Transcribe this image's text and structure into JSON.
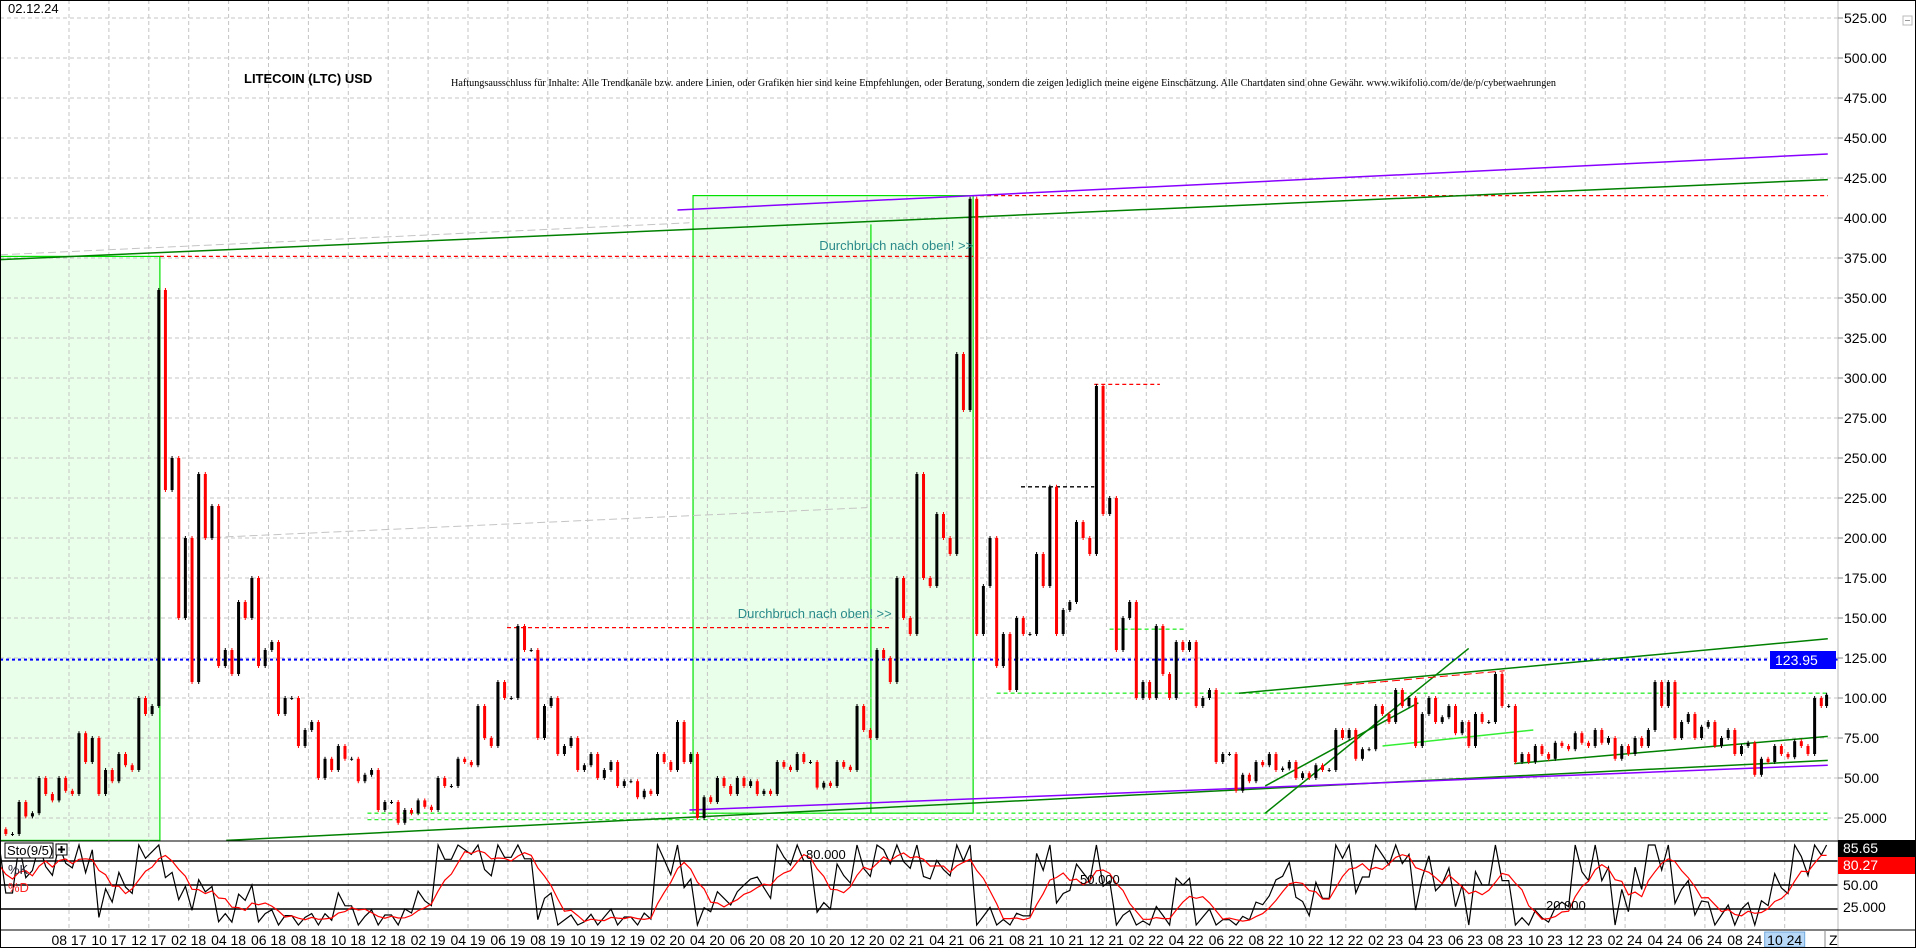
{
  "header": {
    "date": "02.12.24",
    "title": "LITECOIN (LTC) USD",
    "disclaimer": "Haftungsausschluss für Inhalte: Alle Trendkanäle bzw. andere Linien, oder Grafiken hier sind keine Empfehlungen, oder Beratung, sondern die zeigen lediglich meine eigene Einschätzung. Alle Chartdaten sind ohne Gewähr.  www.wikifolio.com/de/de/p/cyberwaehrungen"
  },
  "colors": {
    "up_candle": "#000000",
    "down_candle": "#ff0000",
    "zone_fill": "#eaffea",
    "zone_border": "#00e000",
    "trend_green": "#008000",
    "trend_lime": "#33ee33",
    "trend_purple": "#8800ff",
    "level_red": "#ff0000",
    "level_blue": "#0000ff",
    "grid": "#c4c4c4",
    "stoch_k": "#000000",
    "stoch_d": "#ff0000",
    "annotation_text": "#2a8a8a"
  },
  "chart_data": {
    "type": "candlestick",
    "title": "LITECOIN (LTC) USD",
    "y_axis": {
      "position": "right",
      "ylim": [
        11,
        535
      ],
      "ticks": [
        "525.00",
        "500.00",
        "475.00",
        "450.00",
        "425.00",
        "400.00",
        "375.00",
        "350.00",
        "325.00",
        "300.00",
        "275.00",
        "250.00",
        "225.00",
        "200.00",
        "175.00",
        "150.00",
        "125.00",
        "100.00",
        "75.00",
        "50.00",
        "25.000"
      ],
      "tick_values": [
        525,
        500,
        475,
        450,
        425,
        400,
        375,
        350,
        325,
        300,
        275,
        250,
        225,
        200,
        175,
        150,
        125,
        100,
        75,
        50,
        25
      ]
    },
    "grid": true,
    "last_price_label": "123.95",
    "last_price_level": 123.95,
    "x_axis": {
      "ticks": [
        "08 17",
        "10 17",
        "12 17",
        "02 18",
        "04 18",
        "06 18",
        "08 18",
        "10 18",
        "12 18",
        "02 19",
        "04 19",
        "06 19",
        "08 19",
        "10 19",
        "12 19",
        "02 20",
        "04 20",
        "06 20",
        "08 20",
        "10 20",
        "12 20",
        "02 21",
        "04 21",
        "06 21",
        "08 21",
        "10 21",
        "12 21",
        "02 22",
        "04 22",
        "06 22",
        "08 22",
        "10 22",
        "12 22",
        "02 23",
        "04 23",
        "06 23",
        "08 23",
        "10 23",
        "12 23",
        "02 24",
        "04 24",
        "06 24",
        "08 24",
        "10 24"
      ],
      "end_button": "Z"
    },
    "monthly": {
      "x": [
        "2017-04",
        "2017-05",
        "2017-06",
        "2017-07",
        "2017-08",
        "2017-09",
        "2017-10",
        "2017-11",
        "2017-12",
        "2018-01",
        "2018-02",
        "2018-03",
        "2018-04",
        "2018-05",
        "2018-06",
        "2018-07",
        "2018-08",
        "2018-09",
        "2018-10",
        "2018-11",
        "2018-12",
        "2019-01",
        "2019-02",
        "2019-03",
        "2019-04",
        "2019-05",
        "2019-06",
        "2019-07",
        "2019-08",
        "2019-09",
        "2019-10",
        "2019-11",
        "2019-12",
        "2020-01",
        "2020-02",
        "2020-03",
        "2020-04",
        "2020-05",
        "2020-06",
        "2020-07",
        "2020-08",
        "2020-09",
        "2020-10",
        "2020-11",
        "2020-12",
        "2021-01",
        "2021-02",
        "2021-03",
        "2021-04",
        "2021-05",
        "2021-06",
        "2021-07",
        "2021-08",
        "2021-09",
        "2021-10",
        "2021-11",
        "2021-12",
        "2022-01",
        "2022-02",
        "2022-03",
        "2022-04",
        "2022-05",
        "2022-06",
        "2022-07",
        "2022-08",
        "2022-09",
        "2022-10",
        "2022-11",
        "2022-12",
        "2023-01",
        "2023-02",
        "2023-03",
        "2023-04",
        "2023-05",
        "2023-06",
        "2023-07",
        "2023-08",
        "2023-09",
        "2023-10",
        "2023-11",
        "2023-12",
        "2024-01",
        "2024-02",
        "2024-03",
        "2024-04",
        "2024-05",
        "2024-06",
        "2024-07",
        "2024-08",
        "2024-09",
        "2024-10",
        "2024-11",
        "2024-12"
      ],
      "low": [
        13,
        15,
        28,
        36,
        40,
        40,
        48,
        55,
        95,
        150,
        110,
        120,
        115,
        120,
        90,
        70,
        50,
        55,
        48,
        30,
        22,
        28,
        30,
        45,
        58,
        70,
        100,
        75,
        65,
        55,
        50,
        45,
        38,
        40,
        55,
        25,
        35,
        40,
        40,
        40,
        55,
        44,
        45,
        55,
        75,
        110,
        140,
        170,
        190,
        140,
        120,
        105,
        140,
        140,
        160,
        190,
        130,
        100,
        100,
        100,
        95,
        60,
        42,
        48,
        55,
        50,
        50,
        55,
        62,
        68,
        85,
        70,
        85,
        78,
        70,
        85,
        60,
        60,
        62,
        68,
        70,
        62,
        65,
        80,
        75,
        75,
        70,
        65,
        52,
        60,
        63,
        65,
        95
      ],
      "high": [
        18,
        35,
        50,
        50,
        78,
        75,
        65,
        100,
        355,
        250,
        240,
        220,
        160,
        175,
        135,
        100,
        85,
        70,
        62,
        55,
        35,
        36,
        50,
        62,
        95,
        110,
        145,
        130,
        100,
        75,
        65,
        60,
        48,
        65,
        85,
        65,
        50,
        50,
        48,
        60,
        65,
        60,
        60,
        95,
        130,
        175,
        240,
        215,
        315,
        412,
        200,
        150,
        190,
        232,
        210,
        295,
        225,
        160,
        145,
        135,
        135,
        105,
        65,
        60,
        65,
        60,
        58,
        80,
        80,
        95,
        105,
        100,
        100,
        95,
        90,
        115,
        95,
        70,
        72,
        78,
        80,
        75,
        75,
        110,
        110,
        90,
        85,
        80,
        72,
        70,
        73,
        100,
        105
      ],
      "close": [
        15,
        26,
        40,
        42,
        60,
        55,
        58,
        90,
        230,
        200,
        200,
        130,
        150,
        130,
        100,
        80,
        62,
        62,
        52,
        35,
        30,
        32,
        45,
        60,
        75,
        100,
        130,
        95,
        70,
        58,
        55,
        48,
        42,
        60,
        60,
        38,
        45,
        45,
        42,
        57,
        60,
        47,
        57,
        80,
        125,
        150,
        175,
        200,
        280,
        170,
        140,
        140,
        170,
        155,
        200,
        215,
        150,
        110,
        115,
        130,
        100,
        65,
        52,
        58,
        56,
        53,
        55,
        75,
        68,
        90,
        95,
        90,
        88,
        85,
        85,
        95,
        65,
        65,
        70,
        72,
        72,
        70,
        70,
        95,
        85,
        82,
        75,
        70,
        62,
        65,
        70,
        95,
        102
      ]
    },
    "annotations": {
      "zones": [
        {
          "from": 2017.295,
          "to": 2017.963,
          "low": 11,
          "high": 376
        },
        {
          "from": 2020.19,
          "to": 2021.36,
          "low": 28,
          "high": 414,
          "inner_line": 2020.933,
          "inner_high": 396
        }
      ],
      "trendlines": [
        {
          "color": "trend_green",
          "from": [
            2017.295,
            374
          ],
          "to": [
            2024.93,
            424
          ]
        },
        {
          "color": "trend_purple",
          "from": [
            2020.125,
            405
          ],
          "to": [
            2024.93,
            440
          ]
        },
        {
          "color": "trend_green",
          "from": [
            2018.24,
            11
          ],
          "to": [
            2024.93,
            61
          ]
        },
        {
          "color": "trend_purple",
          "from": [
            2020.175,
            30
          ],
          "to": [
            2024.93,
            58
          ]
        },
        {
          "color": "trend_green",
          "from": [
            2022.47,
            103
          ],
          "to": [
            2024.93,
            137
          ]
        },
        {
          "color": "trend_green",
          "from": [
            2022.58,
            28
          ],
          "to": [
            2023.43,
            131
          ]
        },
        {
          "color": "trend_green",
          "from": [
            2022.58,
            45
          ],
          "to": [
            2023.22,
            97
          ]
        },
        {
          "color": "trend_lime",
          "from": [
            2023.07,
            70
          ],
          "to": [
            2023.7,
            80
          ]
        },
        {
          "color": "trend_green",
          "from": [
            2023.62,
            59
          ],
          "to": [
            2024.93,
            76
          ]
        },
        {
          "color": "grid",
          "dashed": true,
          "from": [
            2017.295,
            377
          ],
          "to": [
            2020.175,
            397
          ]
        },
        {
          "color": "grid",
          "dashed": true,
          "from": [
            2018.137,
            200
          ],
          "to": [
            2020.917,
            219
          ]
        },
        {
          "color": "level_red",
          "dashed": true,
          "from": [
            2022.91,
            108
          ],
          "to": [
            2023.58,
            117
          ]
        }
      ],
      "levels": [
        {
          "color": "level_red",
          "price": 376,
          "from": 2017.963,
          "to": 2021.36
        },
        {
          "color": "level_red",
          "price": 414,
          "from": 2021.36,
          "to": 2024.93
        },
        {
          "color": "level_red",
          "price": 144,
          "from": 2019.413,
          "to": 2021.02
        },
        {
          "color": "level_red",
          "price": 296,
          "from": 2021.866,
          "to": 2022.14
        },
        {
          "color": "up_candle",
          "price": 232,
          "from": 2021.56,
          "to": 2021.866
        },
        {
          "color": "trend_lime",
          "price": 143,
          "from": 2021.93,
          "to": 2022.24
        },
        {
          "color": "trend_lime",
          "price": 103,
          "from": 2021.458,
          "to": 2024.93
        },
        {
          "color": "trend_lime",
          "price": 28,
          "from": 2018.83,
          "to": 2024.93
        },
        {
          "color": "trend_lime",
          "price": 24,
          "from": 2018.83,
          "to": 2024.93
        },
        {
          "color": "level_blue",
          "price": 123.95,
          "from": 2017.295,
          "to": 2024.93
        }
      ],
      "labels": [
        {
          "text": "Durchbruch nach oben! >>",
          "at": [
            2021.36,
            380
          ]
        },
        {
          "text": "Durchbruch nach oben! >>",
          "at": [
            2021.02,
            150
          ]
        }
      ]
    },
    "stochastic": {
      "label": "Sto(9/5)",
      "expand_button": "+",
      "k_label": "%K",
      "d_label": "%D",
      "k_value": "85.65",
      "d_value": "80.27",
      "levels": [
        80,
        50,
        20
      ],
      "level_labels": [
        "80.000",
        "50.000",
        "20.000"
      ],
      "axis_labels": [
        "50.00",
        "25.000"
      ],
      "ylim": [
        0,
        100
      ]
    }
  }
}
